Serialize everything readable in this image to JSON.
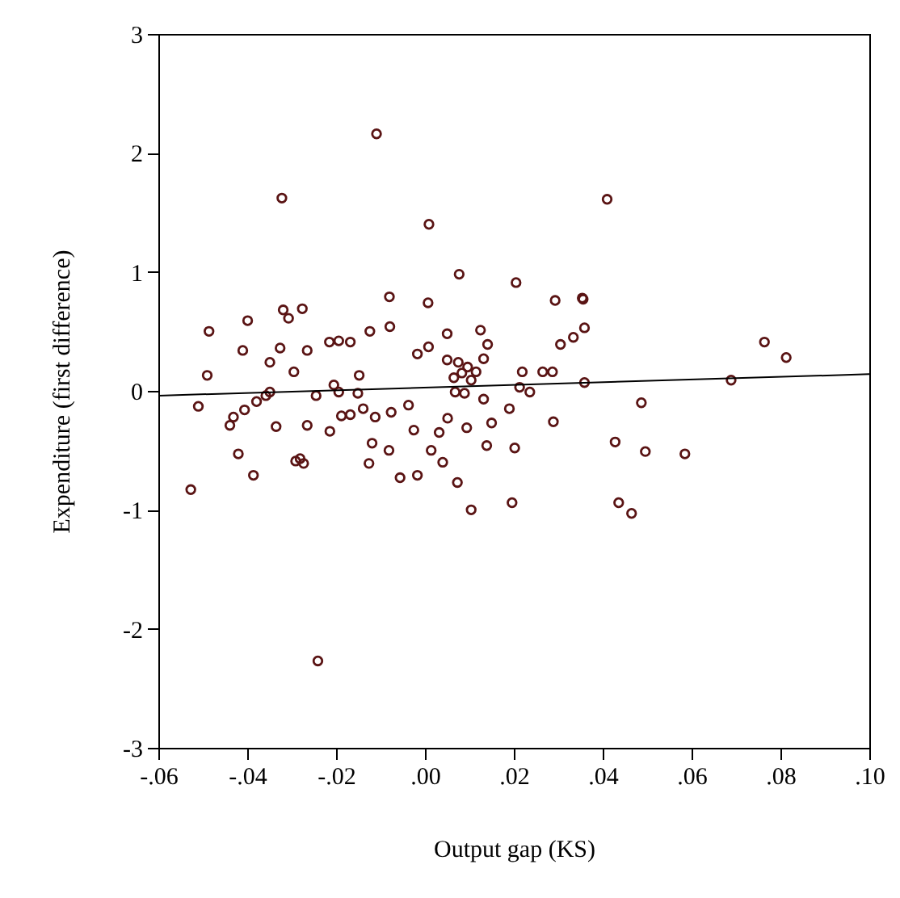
{
  "chart_data": {
    "type": "scatter",
    "xlabel": "Output gap (KS)",
    "ylabel": "Expenditure (first difference)",
    "xlim": [
      -0.06,
      0.1
    ],
    "ylim": [
      -3,
      3
    ],
    "xticks": [
      {
        "value": -0.06,
        "label": "-.06"
      },
      {
        "value": -0.04,
        "label": "-.04"
      },
      {
        "value": -0.02,
        "label": "-.02"
      },
      {
        "value": 0,
        "label": ".00"
      },
      {
        "value": 0.02,
        "label": ".02"
      },
      {
        "value": 0.04,
        "label": ".04"
      },
      {
        "value": 0.06,
        "label": ".06"
      },
      {
        "value": 0.08,
        "label": ".08"
      },
      {
        "value": 0.1,
        "label": ".10"
      }
    ],
    "yticks": [
      -3,
      -2,
      -1,
      0,
      1,
      2,
      3
    ],
    "grid": false,
    "series": [
      {
        "marker": "circle",
        "color": "#5a1414",
        "x": [
          -0.0109,
          -0.0322,
          0.0009,
          0.0077,
          0.0205,
          -0.008,
          0.0007,
          -0.0319,
          -0.0276,
          -0.0307,
          -0.0399,
          -0.0486,
          -0.0079,
          -0.0124,
          0.0125,
          0.005,
          -0.041,
          -0.0326,
          -0.0265,
          -0.0215,
          -0.0194,
          -0.0168,
          0.0141,
          0.0008,
          -0.0017,
          -0.0349,
          0.005,
          0.0075,
          0.0132,
          0.0096,
          0.0115,
          0.0083,
          0.0065,
          0.0104,
          -0.0295,
          -0.049,
          -0.0148,
          -0.0205,
          0.0068,
          0.0089,
          0.0213,
          -0.0349,
          -0.0358,
          -0.0194,
          -0.0151,
          -0.0245,
          -0.0379,
          -0.051,
          0.0132,
          -0.0037,
          0.019,
          -0.0406,
          -0.0431,
          -0.0439,
          -0.0335,
          -0.0265,
          -0.0188,
          -0.0168,
          -0.0139,
          -0.0112,
          -0.0076,
          0.0051,
          0.015,
          0.0094,
          -0.0025,
          0.0032,
          -0.0214,
          -0.042,
          -0.0119,
          -0.0081,
          0.0014,
          0.0139,
          0.0202,
          -0.0291,
          -0.0281,
          -0.0273,
          -0.0126,
          0.004,
          -0.0527,
          -0.0386,
          -0.0241,
          -0.0056,
          -0.0017,
          0.0073,
          0.0104,
          0.0196,
          0.041,
          0.0293,
          0.0354,
          0.0356,
          0.0359,
          0.0334,
          0.0305,
          0.0764,
          0.0813,
          0.0219,
          0.0265,
          0.0287,
          0.0236,
          0.0359,
          0.0689,
          0.0289,
          0.0487,
          0.0428,
          0.0496,
          0.0585,
          0.0436,
          0.0465
        ],
        "values": [
          2.16,
          1.62,
          1.4,
          0.98,
          0.91,
          0.79,
          0.74,
          0.68,
          0.69,
          0.61,
          0.59,
          0.5,
          0.54,
          0.5,
          0.51,
          0.48,
          0.34,
          0.36,
          0.34,
          0.41,
          0.42,
          0.41,
          0.39,
          0.37,
          0.31,
          0.24,
          0.26,
          0.24,
          0.27,
          0.2,
          0.16,
          0.15,
          0.11,
          0.09,
          0.16,
          0.13,
          0.13,
          0.05,
          -0.01,
          -0.02,
          0.03,
          -0.01,
          -0.04,
          -0.01,
          -0.02,
          -0.04,
          -0.09,
          -0.13,
          -0.07,
          -0.12,
          -0.15,
          -0.16,
          -0.22,
          -0.29,
          -0.3,
          -0.29,
          -0.21,
          -0.2,
          -0.15,
          -0.22,
          -0.18,
          -0.23,
          -0.27,
          -0.31,
          -0.33,
          -0.35,
          -0.34,
          -0.53,
          -0.44,
          -0.5,
          -0.5,
          -0.46,
          -0.48,
          -0.59,
          -0.57,
          -0.61,
          -0.61,
          -0.6,
          -0.83,
          -0.71,
          -2.27,
          -0.73,
          -0.71,
          -0.77,
          -1.0,
          -0.94,
          1.61,
          0.76,
          0.78,
          0.77,
          0.53,
          0.45,
          0.39,
          0.41,
          0.28,
          0.16,
          0.16,
          0.16,
          -0.01,
          0.07,
          0.09,
          -0.26,
          -0.1,
          -0.43,
          -0.51,
          -0.53,
          -0.94,
          -1.03
        ]
      },
      {
        "type": "line",
        "marker": "none",
        "color": "#000000",
        "x": [
          -0.06,
          0.1
        ],
        "values": [
          -0.04,
          0.14
        ]
      }
    ]
  }
}
